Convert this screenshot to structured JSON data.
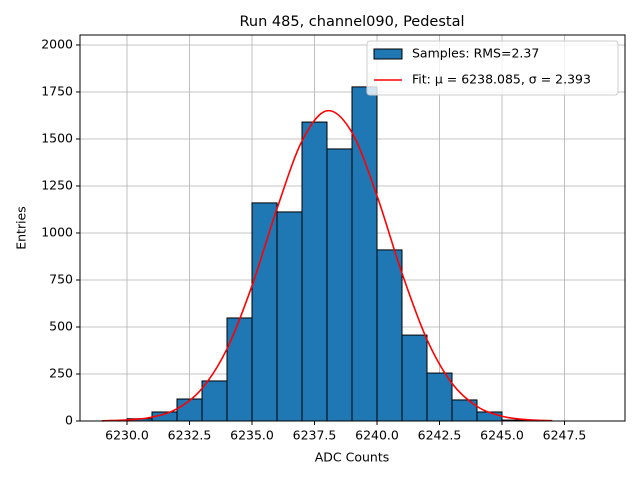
{
  "chart_data": {
    "type": "histogram",
    "title": "Run 485, channel090, Pedestal",
    "x_label": "ADC Counts",
    "y_label": "Entries",
    "bins": [
      6229,
      6230,
      6231,
      6232,
      6233,
      6234,
      6235,
      6236,
      6237,
      6238,
      6239,
      6240,
      6241,
      6242,
      6243,
      6244,
      6245,
      6246,
      6247,
      6248,
      6249
    ],
    "series": [
      {
        "name": "Samples: RMS=2.37",
        "color": "#1f77b4",
        "edgecolor": "#000000",
        "values": [
          1,
          12,
          48,
          117,
          213,
          548,
          1160,
          1112,
          1590,
          1447,
          1777,
          910,
          457,
          255,
          112,
          48,
          5,
          1,
          0,
          0
        ]
      },
      {
        "name": "Fit: μ = 6238.085, σ = 2.393",
        "type": "line",
        "color": "#ff0000",
        "x": [
          6229,
          6230,
          6231,
          6232,
          6233,
          6234,
          6235,
          6236,
          6237,
          6238,
          6239,
          6240,
          6241,
          6242,
          6243,
          6244,
          6245,
          6246,
          6247
        ],
        "values": [
          1.2,
          5.5,
          20.6,
          65,
          172.6,
          384,
          719,
          1129,
          1489,
          1650,
          1534,
          1198,
          786,
          433,
          200,
          77.7,
          25.4,
          6.9,
          1.6
        ]
      }
    ],
    "xlim": [
      6228.12,
      6249.92
    ],
    "xticks": [
      {
        "value": 6230,
        "label": "6230.0"
      },
      {
        "value": 6232.5,
        "label": "6232.5"
      },
      {
        "value": 6235,
        "label": "6235.0"
      },
      {
        "value": 6237.5,
        "label": "6237.5"
      },
      {
        "value": 6240,
        "label": "6240.0"
      },
      {
        "value": 6242.5,
        "label": "6242.5"
      },
      {
        "value": 6245,
        "label": "6245.0"
      },
      {
        "value": 6247.5,
        "label": "6247.5"
      }
    ],
    "ylim": [
      0,
      2053
    ],
    "yticks": [
      0,
      250,
      500,
      750,
      1000,
      1250,
      1500,
      1750,
      2000
    ],
    "grid": true,
    "legend": "upper right"
  }
}
